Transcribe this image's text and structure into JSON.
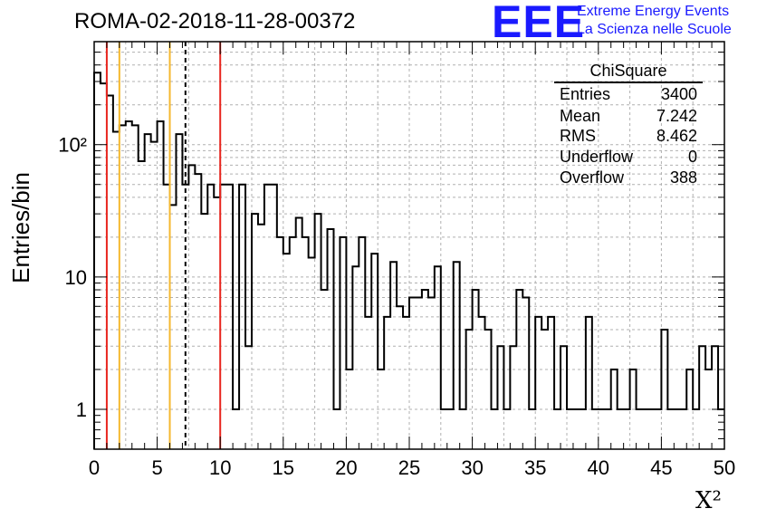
{
  "header": {
    "title": "ROMA-02-2018-11-28-00372",
    "logo_text": "EEE",
    "logo_line1": "Extreme Energy Events",
    "logo_line2": "La Scienza nelle Scuole"
  },
  "stats_box": {
    "name": "ChiSquare",
    "rows": [
      {
        "label": "Entries",
        "value": "3400"
      },
      {
        "label": "Mean",
        "value": "7.242"
      },
      {
        "label": "RMS",
        "value": "8.462"
      },
      {
        "label": "Underflow",
        "value": "0"
      },
      {
        "label": "Overflow",
        "value": "388"
      }
    ]
  },
  "chart_data": {
    "type": "histogram",
    "xlabel": "X²",
    "ylabel": "Entries/bin",
    "xlim": [
      0,
      50
    ],
    "ylim": [
      0.5,
      600
    ],
    "yscale": "log",
    "bin_width": 0.5,
    "grid": true,
    "x_ticks": [
      "0",
      "5",
      "10",
      "15",
      "20",
      "25",
      "30",
      "35",
      "40",
      "45",
      "50"
    ],
    "y_ticks": [
      {
        "value": 1,
        "label": "1"
      },
      {
        "value": 10,
        "label": "10"
      },
      {
        "value": 100,
        "label": "10²"
      }
    ],
    "values": [
      350,
      290,
      235,
      125,
      140,
      150,
      140,
      75,
      120,
      105,
      150,
      50,
      35,
      120,
      50,
      70,
      60,
      30,
      50,
      40,
      50,
      50,
      1,
      50,
      3,
      30,
      25,
      50,
      50,
      20,
      15,
      20,
      28,
      20,
      14,
      30,
      8,
      23,
      1,
      20,
      2,
      12,
      20,
      5,
      15,
      2,
      5,
      13,
      6,
      5,
      7,
      7,
      8,
      7,
      12,
      1,
      1,
      13,
      1,
      4,
      8,
      5,
      4,
      1,
      3,
      1,
      3,
      8,
      7,
      1,
      5,
      4,
      5,
      1,
      3,
      1,
      1,
      1,
      5,
      1,
      1,
      1,
      2,
      1,
      1,
      2,
      1,
      1,
      1,
      1,
      4,
      1,
      1,
      1,
      2,
      1,
      3,
      2,
      3,
      1
    ],
    "vlines": [
      {
        "x": 1.0,
        "color": "#e8261f",
        "style": "solid"
      },
      {
        "x": 2.0,
        "color": "#f5b82e",
        "style": "solid"
      },
      {
        "x": 6.0,
        "color": "#f5b82e",
        "style": "solid"
      },
      {
        "x": 7.242,
        "color": "#000000",
        "style": "dashed"
      },
      {
        "x": 10.0,
        "color": "#e8261f",
        "style": "solid"
      }
    ]
  }
}
